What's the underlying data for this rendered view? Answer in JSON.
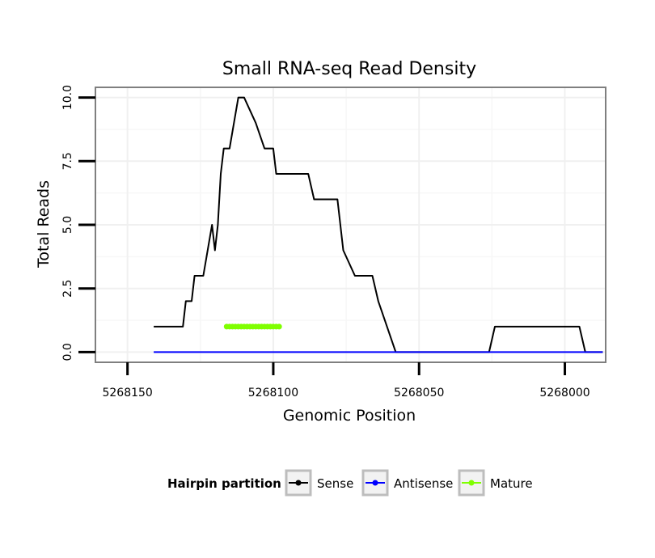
{
  "chart_data": {
    "type": "line",
    "title": "Small RNA-seq Read Density",
    "xlabel": "Genomic Position",
    "ylabel": "Total Reads",
    "x_reversed": true,
    "xlim": [
      5268161,
      5267986
    ],
    "ylim": [
      -0.4,
      10.4
    ],
    "x_ticks": [
      5268150,
      5268100,
      5268050,
      5268000
    ],
    "x_tick_labels": [
      "5268150",
      "5268100",
      "5268050",
      "5268000"
    ],
    "y_ticks": [
      0,
      2.5,
      5,
      7.5,
      10
    ],
    "y_tick_labels": [
      "0.0",
      "2.5",
      "5.0",
      "7.5",
      "10.0"
    ],
    "grid": true,
    "legend": {
      "title": "Hairpin partition",
      "position": "bottom",
      "entries": [
        "Sense",
        "Antisense",
        "Mature"
      ]
    },
    "series": [
      {
        "name": "Sense",
        "color": "#000000",
        "x": [
          5268141,
          5268131,
          5268130,
          5268128,
          5268127,
          5268124,
          5268121,
          5268120,
          5268119,
          5268118,
          5268117,
          5268115,
          5268112,
          5268110,
          5268106,
          5268103,
          5268100,
          5268099,
          5268088,
          5268086,
          5268082,
          5268078,
          5268076,
          5268072,
          5268066,
          5268064,
          5268058,
          5268056,
          5268049,
          5268032,
          5268026,
          5268024,
          5268022,
          5268021,
          5268020,
          5268018,
          5268015,
          5268012,
          5268009,
          5268006,
          5268004,
          5268001,
          5267998,
          5267996,
          5267995,
          5267993,
          5267990,
          5267988,
          5267987
        ],
        "values": [
          1,
          1,
          2,
          2,
          3,
          3,
          5,
          4,
          5,
          7,
          8,
          8,
          10,
          10,
          9,
          8,
          8,
          7,
          7,
          6,
          6,
          6,
          4,
          3,
          3,
          2,
          0,
          0,
          0,
          0,
          0,
          1,
          1,
          1,
          1,
          1,
          1,
          1,
          1,
          1,
          1,
          1,
          1,
          1,
          1,
          0,
          0,
          0,
          0
        ]
      },
      {
        "name": "Antisense",
        "color": "#0000ff",
        "x": [
          5268141,
          5268001,
          5267987
        ],
        "values": [
          0,
          0,
          0
        ]
      },
      {
        "name": "Mature",
        "color": "#7fff00",
        "x": [
          5268116,
          5268115,
          5268114,
          5268113,
          5268112,
          5268111,
          5268110,
          5268109,
          5268108,
          5268107,
          5268106,
          5268105,
          5268104,
          5268103,
          5268102,
          5268101,
          5268100,
          5268099,
          5268098
        ],
        "values": [
          1,
          1,
          1,
          1,
          1,
          1,
          1,
          1,
          1,
          1,
          1,
          1,
          1,
          1,
          1,
          1,
          1,
          1,
          1
        ]
      }
    ]
  }
}
